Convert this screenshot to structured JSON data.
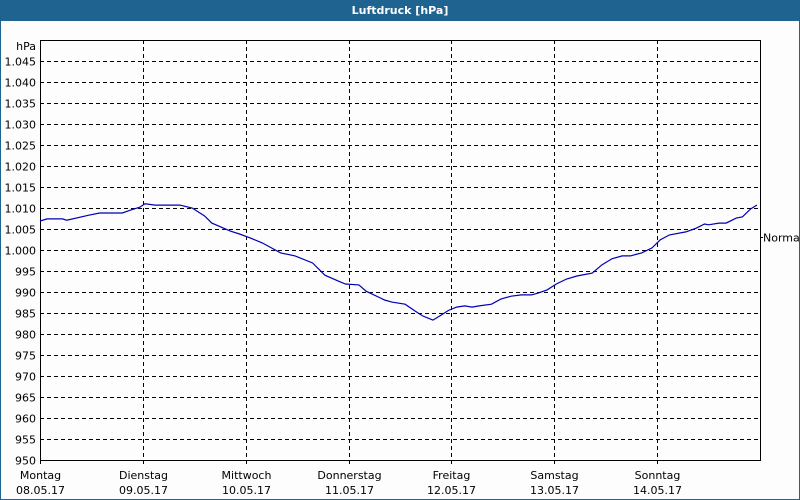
{
  "window": {
    "title": "Luftdruck [hPa]"
  },
  "colors": {
    "titlebar": "#1f6391",
    "line": "#0000b4",
    "grid": "#000000"
  },
  "chart_data": {
    "type": "line",
    "title": "Luftdruck [hPa]",
    "xlabel": "",
    "ylabel": "hPa",
    "ylim": [
      950,
      1050
    ],
    "grid": true,
    "y_ticks": [
      950,
      955,
      960,
      965,
      970,
      975,
      980,
      985,
      990,
      995,
      1000,
      1005,
      1010,
      1015,
      1020,
      1025,
      1030,
      1035,
      1040,
      1045
    ],
    "y_tick_labels": [
      "950",
      "955",
      "960",
      "965",
      "970",
      "975",
      "980",
      "985",
      "990",
      "995",
      "1.000",
      "1.005",
      "1.010",
      "1.015",
      "1.020",
      "1.025",
      "1.030",
      "1.035",
      "1.040",
      "1.045"
    ],
    "x_ticks": [
      {
        "day": "Montag",
        "date": "08.05.17",
        "pos": 0.0
      },
      {
        "day": "Dienstag",
        "date": "09.05.17",
        "pos": 1.0
      },
      {
        "day": "Mittwoch",
        "date": "10.05.17",
        "pos": 2.0
      },
      {
        "day": "Donnerstag",
        "date": "11.05.17",
        "pos": 3.0
      },
      {
        "day": "Freitag",
        "date": "12.05.17",
        "pos": 4.0
      },
      {
        "day": "Samstag",
        "date": "13.05.17",
        "pos": 5.0
      },
      {
        "day": "Sonntag",
        "date": "14.05.17",
        "pos": 6.0
      }
    ],
    "annotations": [
      {
        "text": "Normal",
        "y": 1003
      }
    ],
    "series": [
      {
        "name": "Luftdruck",
        "x": [
          0.0,
          0.07,
          0.22,
          0.26,
          0.48,
          0.58,
          0.8,
          0.88,
          0.97,
          1.02,
          1.12,
          1.36,
          1.48,
          1.6,
          1.67,
          1.85,
          1.94,
          2.04,
          2.16,
          2.34,
          2.48,
          2.65,
          2.77,
          2.9,
          2.97,
          3.1,
          3.17,
          3.35,
          3.42,
          3.55,
          3.65,
          3.72,
          3.82,
          3.9,
          3.97,
          4.05,
          4.13,
          4.2,
          4.27,
          4.39,
          4.48,
          4.58,
          4.68,
          4.78,
          4.85,
          4.93,
          5.02,
          5.12,
          5.22,
          5.37,
          5.46,
          5.56,
          5.66,
          5.74,
          5.85,
          5.95,
          6.03,
          6.12,
          6.28,
          6.38,
          6.46,
          6.5,
          6.6,
          6.67,
          6.77,
          6.83,
          6.91,
          6.97
        ],
        "values": [
          1006.9,
          1007.4,
          1007.4,
          1007.1,
          1008.3,
          1008.8,
          1008.8,
          1009.5,
          1010.2,
          1011.0,
          1010.7,
          1010.7,
          1010.0,
          1008.1,
          1006.4,
          1004.5,
          1003.8,
          1002.9,
          1001.7,
          999.3,
          998.6,
          996.9,
          994.0,
          992.6,
          991.9,
          991.7,
          990.2,
          988.1,
          987.6,
          987.1,
          985.4,
          984.3,
          983.3,
          984.5,
          985.6,
          986.4,
          986.7,
          986.4,
          986.7,
          987.1,
          988.3,
          989.0,
          989.3,
          989.3,
          989.8,
          990.5,
          991.9,
          993.1,
          993.8,
          994.5,
          996.4,
          997.9,
          998.6,
          998.6,
          999.3,
          1000.5,
          1002.4,
          1003.6,
          1004.3,
          1005.2,
          1006.2,
          1006.0,
          1006.4,
          1006.4,
          1007.6,
          1007.9,
          1009.8,
          1010.7
        ]
      }
    ]
  }
}
